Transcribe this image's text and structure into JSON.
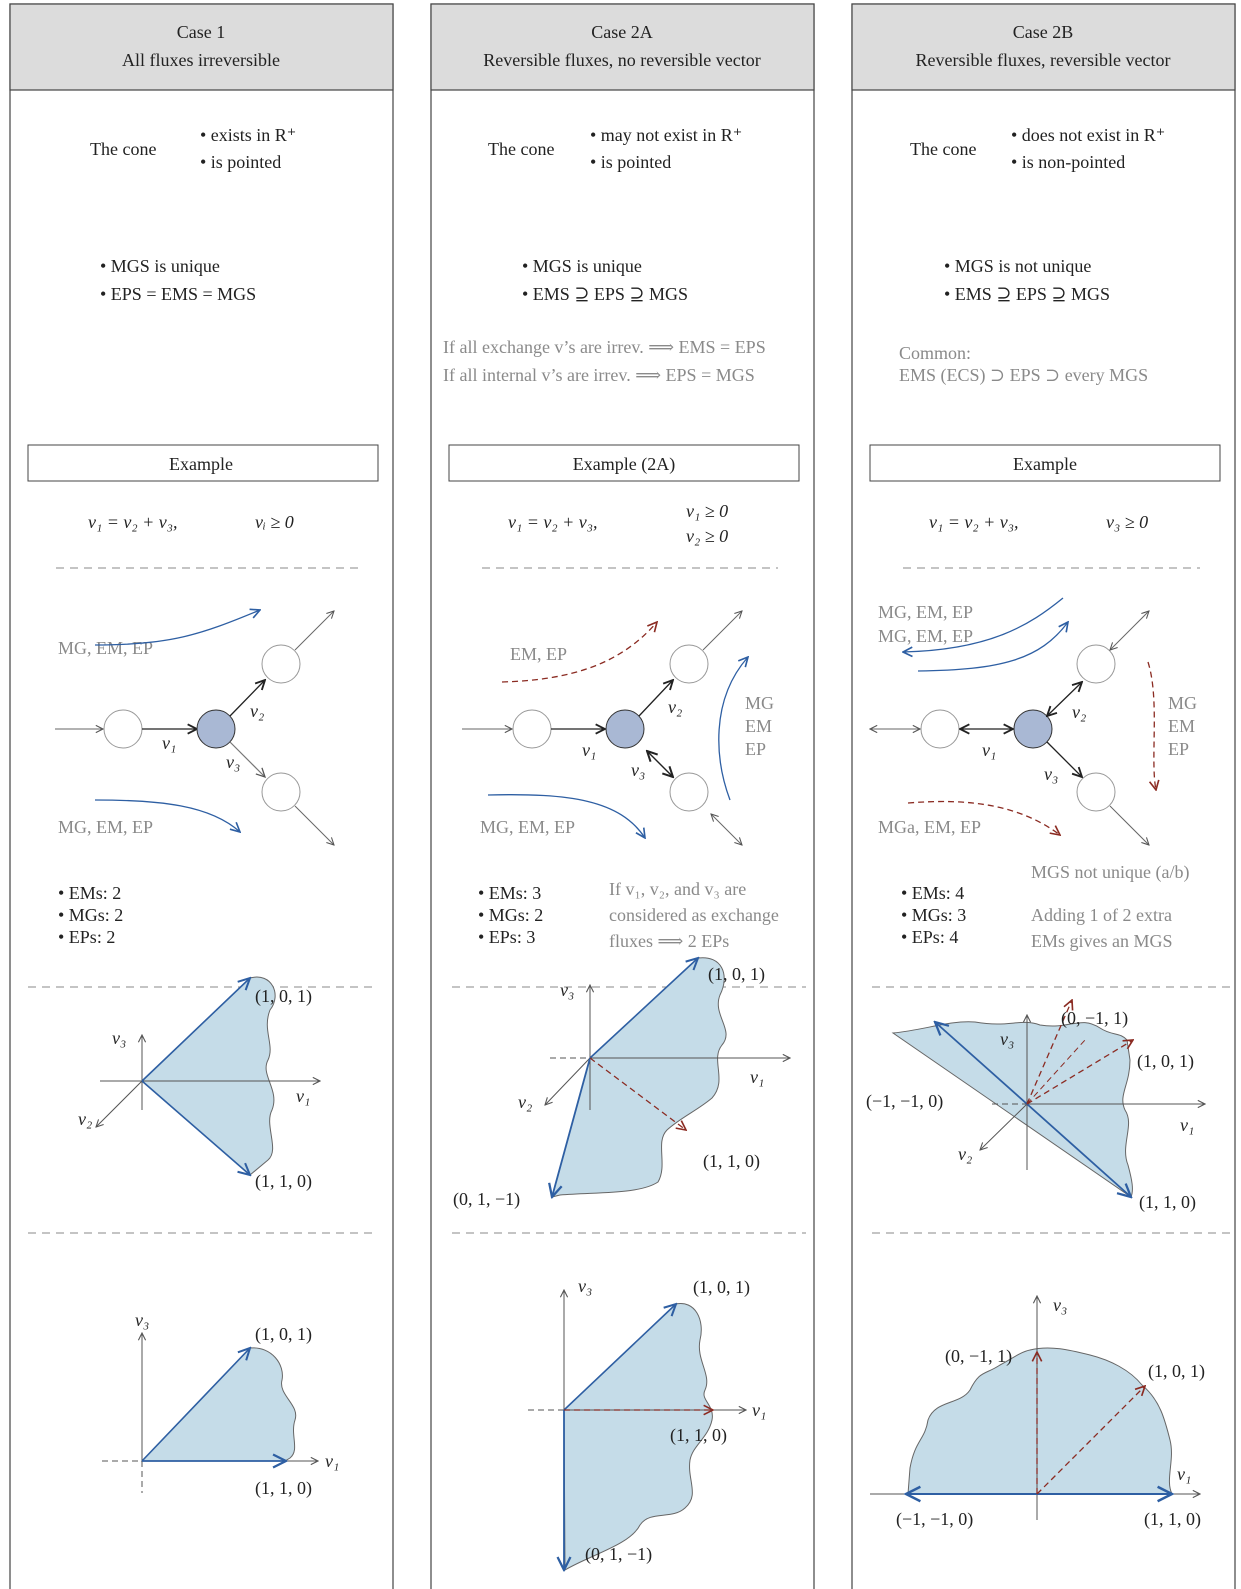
{
  "columns": [
    {
      "header": [
        "Case 1",
        "All fluxes irreversible"
      ],
      "cone_label": "The cone",
      "cone_props": [
        "• exists in R⁺",
        "• is pointed"
      ],
      "set_props": [
        "• MGS is unique",
        "• EPS = EMS = MGS"
      ],
      "notes": [],
      "example_label": "Example",
      "equation": "v₁ = v₂ + v₃,",
      "constraints": [
        "vᵢ ≥ 0"
      ],
      "network_labels": {
        "top": "MG, EM, EP",
        "bottom": "MG, EM, EP",
        "v1": "v₁",
        "v2": "v₂",
        "v3": "v₃"
      },
      "counts": [
        "• EMs: 2",
        "• MGs: 2",
        "• EPs: 2"
      ],
      "side_note": [],
      "plot3d": {
        "axes": [
          "v₃",
          "v₁",
          "v₂"
        ],
        "points": [
          "(1, 0, 1)",
          "(1, 1, 0)"
        ]
      },
      "plot2d": {
        "axes": [
          "v₃",
          "v₁"
        ],
        "points": [
          "(1, 0, 1)",
          "(1, 1, 0)"
        ]
      }
    },
    {
      "header": [
        "Case 2A",
        "Reversible fluxes, no reversible vector"
      ],
      "cone_label": "The cone",
      "cone_props": [
        "• may not exist in R⁺",
        "• is pointed"
      ],
      "set_props": [
        "• MGS is unique",
        "• EMS ⊇ EPS ⊇ MGS"
      ],
      "notes": [
        "If all exchange v’s are irrev. ⟹ EMS = EPS",
        "If all internal v’s are irrev. ⟹ EPS = MGS"
      ],
      "example_label": "Example (2A)",
      "equation": "v₁ = v₂ + v₃,",
      "constraints": [
        "v₁ ≥ 0",
        "v₂ ≥ 0"
      ],
      "network_labels": {
        "top": "EM, EP",
        "bottom": "MG, EM, EP",
        "right": [
          "MG",
          "EM",
          "EP"
        ],
        "v1": "v₁",
        "v2": "v₂",
        "v3": "v₃"
      },
      "counts": [
        "• EMs: 3",
        "• MGs: 2",
        "• EPs: 3"
      ],
      "side_note": [
        "If v₁, v₂, and v₃ are",
        "considered as exchange",
        "fluxes ⟹ 2 EPs"
      ],
      "plot3d": {
        "axes": [
          "v₃",
          "v₁",
          "v₂"
        ],
        "points": [
          "(1, 0, 1)",
          "(1, 1, 0)",
          "(0, 1, −1)"
        ]
      },
      "plot2d": {
        "axes": [
          "v₃",
          "v₁"
        ],
        "points": [
          "(1, 0, 1)",
          "(1, 1, 0)",
          "(0, 1, −1)"
        ]
      }
    },
    {
      "header": [
        "Case 2B",
        "Reversible fluxes, reversible vector"
      ],
      "cone_label": "The cone",
      "cone_props": [
        "• does not exist in R⁺",
        "• is non-pointed"
      ],
      "set_props": [
        "• MGS is not unique",
        "• EMS ⊇ EPS ⊇ MGS"
      ],
      "notes": [
        "Common:",
        "EMS (ECS) ⊃ EPS ⊃ every MGS"
      ],
      "example_label": "Example",
      "equation": "v₁ = v₂ + v₃,",
      "constraints": [
        "v₃ ≥ 0"
      ],
      "network_labels": {
        "top1": "MG, EM, EP",
        "top2": "MG, EM, EP",
        "bottom": "MGa, EM, EP",
        "right": [
          "MG",
          "EM",
          "EP"
        ],
        "v1": "v₁",
        "v2": "v₂",
        "v3": "v₃"
      },
      "counts": [
        "• EMs: 4",
        "• MGs: 3",
        "• EPs: 4"
      ],
      "side_note": [
        "MGS not unique (a/b)",
        "Adding 1 of 2 extra",
        "EMs gives an MGS"
      ],
      "plot3d": {
        "axes": [
          "v₃",
          "v₁",
          "v₂"
        ],
        "points": [
          "(0, −1, 1)",
          "(1, 0, 1)",
          "(−1, −1, 0)",
          "(1, 1, 0)"
        ]
      },
      "plot2d": {
        "axes": [
          "v₃",
          "v₁"
        ],
        "points": [
          "(0, −1, 1)",
          "(1, 0, 1)",
          "(−1, −1, 0)",
          "(1, 1, 0)"
        ]
      }
    }
  ],
  "colors": {
    "blue": "#2e5fa3",
    "red": "#8b2b22",
    "fill": "#c5dce8",
    "node": "#a9b8d4",
    "header_bg": "#dcdcdc"
  }
}
